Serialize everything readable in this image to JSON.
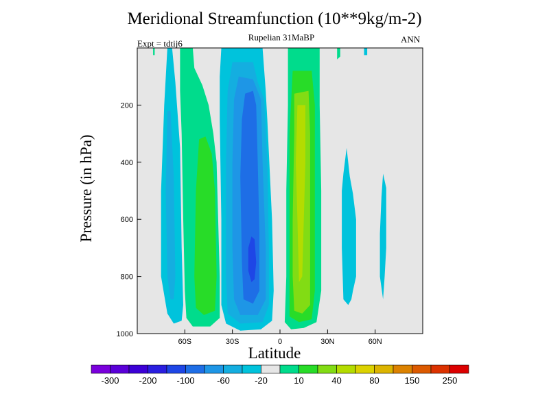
{
  "chart_data": {
    "type": "filled-contour",
    "title": "Meridional Streamfunction (10**9kg/m-2)",
    "subtitle": "Rupelian  31MaBP",
    "left_label": "Expt = tdtij6",
    "right_label": "ANN",
    "xlabel": "Latitude",
    "ylabel": "Pressure (in hPa)",
    "xlim": [
      -90,
      90
    ],
    "ylim": [
      1000,
      0
    ],
    "x_ticks": [
      {
        "value": -60,
        "label": "60S"
      },
      {
        "value": -30,
        "label": "30S"
      },
      {
        "value": 0,
        "label": "0"
      },
      {
        "value": 30,
        "label": "30N"
      },
      {
        "value": 60,
        "label": "60N"
      }
    ],
    "y_ticks": [
      {
        "value": 200,
        "label": "200"
      },
      {
        "value": 400,
        "label": "400"
      },
      {
        "value": 600,
        "label": "600"
      },
      {
        "value": 800,
        "label": "800"
      },
      {
        "value": 1000,
        "label": "1000"
      }
    ],
    "colorbar": {
      "colors": [
        "#7a00dc",
        "#5a00d8",
        "#3c00d6",
        "#2a1ee0",
        "#1e46e6",
        "#1e6ee6",
        "#1e96e6",
        "#14aee0",
        "#00c3dc",
        "#e6e6e6",
        "#00dc8c",
        "#28dc28",
        "#82dc14",
        "#b4dc00",
        "#dcd200",
        "#dcb400",
        "#dc8200",
        "#dc5a00",
        "#dc3200",
        "#dc0000"
      ],
      "labels": [
        {
          "after_index": 0,
          "text": "-300"
        },
        {
          "after_index": 2,
          "text": "-200"
        },
        {
          "after_index": 4,
          "text": "-100"
        },
        {
          "after_index": 6,
          "text": "-60"
        },
        {
          "after_index": 8,
          "text": "-20"
        },
        {
          "after_index": 10,
          "text": "10"
        },
        {
          "after_index": 12,
          "text": "40"
        },
        {
          "after_index": 14,
          "text": "80"
        },
        {
          "after_index": 16,
          "text": "150"
        },
        {
          "after_index": 18,
          "text": "250"
        }
      ]
    },
    "background_color": "#e6e6e6",
    "regions": [
      {
        "color": "#00c3dc",
        "pts": [
          [
            -71,
            0
          ],
          [
            -68,
            0
          ],
          [
            -66,
            120
          ],
          [
            -63,
            350
          ],
          [
            -62,
            700
          ],
          [
            -61,
            900
          ],
          [
            -62,
            955
          ],
          [
            -67,
            965
          ],
          [
            -71,
            930
          ],
          [
            -75,
            800
          ],
          [
            -75,
            500
          ],
          [
            -73,
            200
          ]
        ]
      },
      {
        "color": "#14aee0",
        "pts": [
          [
            -71,
            220
          ],
          [
            -69,
            220
          ],
          [
            -67,
            450
          ],
          [
            -66,
            800
          ],
          [
            -67,
            880
          ],
          [
            -69,
            880
          ],
          [
            -71,
            800
          ],
          [
            -72,
            500
          ]
        ]
      },
      {
        "color": "#00dc8c",
        "pts": [
          [
            -63,
            0
          ],
          [
            -55,
            0
          ],
          [
            -54,
            70
          ],
          [
            -49,
            130
          ],
          [
            -45,
            200
          ],
          [
            -42,
            300
          ],
          [
            -40,
            400
          ],
          [
            -38,
            800
          ],
          [
            -38,
            945
          ],
          [
            -44,
            975
          ],
          [
            -55,
            975
          ],
          [
            -59,
            945
          ],
          [
            -60,
            850
          ],
          [
            -61,
            600
          ],
          [
            -62,
            300
          ],
          [
            -63,
            150
          ]
        ]
      },
      {
        "color": "#28dc28",
        "pts": [
          [
            -51,
            320
          ],
          [
            -47,
            310
          ],
          [
            -43,
            370
          ],
          [
            -41,
            500
          ],
          [
            -40,
            800
          ],
          [
            -41,
            920
          ],
          [
            -48,
            935
          ],
          [
            -53,
            910
          ],
          [
            -54,
            800
          ],
          [
            -53,
            500
          ]
        ]
      },
      {
        "color": "#00c3dc",
        "pts": [
          [
            -37,
            0
          ],
          [
            -11,
            0
          ],
          [
            -9,
            150
          ],
          [
            -8,
            250
          ],
          [
            -5,
            600
          ],
          [
            -4,
            850
          ],
          [
            -5,
            955
          ],
          [
            -12,
            985
          ],
          [
            -25,
            990
          ],
          [
            -34,
            965
          ],
          [
            -37,
            900
          ],
          [
            -37,
            600
          ],
          [
            -38,
            250
          ],
          [
            -38,
            100
          ]
        ]
      },
      {
        "color": "#14aee0",
        "pts": [
          [
            -30,
            50
          ],
          [
            -17,
            50
          ],
          [
            -14,
            120
          ],
          [
            -10,
            180
          ],
          [
            -8,
            400
          ],
          [
            -7,
            700
          ],
          [
            -7,
            900
          ],
          [
            -11,
            960
          ],
          [
            -25,
            965
          ],
          [
            -33,
            930
          ],
          [
            -34,
            800
          ],
          [
            -34,
            400
          ],
          [
            -33,
            150
          ]
        ]
      },
      {
        "color": "#1e96e6",
        "pts": [
          [
            -26,
            100
          ],
          [
            -17,
            110
          ],
          [
            -12,
            180
          ],
          [
            -11,
            400
          ],
          [
            -9,
            700
          ],
          [
            -9,
            880
          ],
          [
            -14,
            935
          ],
          [
            -25,
            935
          ],
          [
            -29,
            880
          ],
          [
            -30,
            700
          ],
          [
            -30,
            400
          ],
          [
            -29,
            180
          ]
        ]
      },
      {
        "color": "#1e6ee6",
        "pts": [
          [
            -22,
            160
          ],
          [
            -17,
            150
          ],
          [
            -15,
            200
          ],
          [
            -14,
            400
          ],
          [
            -13,
            650
          ],
          [
            -13,
            850
          ],
          [
            -17,
            895
          ],
          [
            -23,
            880
          ],
          [
            -24,
            750
          ],
          [
            -25,
            450
          ],
          [
            -24,
            250
          ]
        ]
      },
      {
        "color": "#1e46e6",
        "pts": [
          [
            -18,
            660
          ],
          [
            -16,
            670
          ],
          [
            -15,
            750
          ],
          [
            -16,
            810
          ],
          [
            -18,
            820
          ],
          [
            -20,
            780
          ],
          [
            -20,
            700
          ]
        ]
      },
      {
        "color": "#00dc8c",
        "pts": [
          [
            5,
            0
          ],
          [
            25,
            0
          ],
          [
            25,
            200
          ],
          [
            26,
            500
          ],
          [
            26,
            850
          ],
          [
            23,
            960
          ],
          [
            15,
            980
          ],
          [
            7,
            985
          ],
          [
            3,
            960
          ],
          [
            4,
            800
          ],
          [
            4,
            500
          ],
          [
            5,
            200
          ]
        ]
      },
      {
        "color": "#28dc28",
        "pts": [
          [
            8,
            80
          ],
          [
            20,
            80
          ],
          [
            22,
            200
          ],
          [
            22,
            500
          ],
          [
            22,
            850
          ],
          [
            20,
            950
          ],
          [
            12,
            960
          ],
          [
            6,
            940
          ],
          [
            6,
            700
          ],
          [
            6,
            300
          ]
        ]
      },
      {
        "color": "#82dc14",
        "pts": [
          [
            9,
            160
          ],
          [
            18,
            150
          ],
          [
            19,
            300
          ],
          [
            19,
            600
          ],
          [
            19,
            900
          ],
          [
            14,
            930
          ],
          [
            9,
            920
          ],
          [
            8,
            800
          ],
          [
            8,
            600
          ],
          [
            9,
            300
          ]
        ]
      },
      {
        "color": "#b4dc00",
        "pts": [
          [
            11,
            200
          ],
          [
            16,
            200
          ],
          [
            16,
            400
          ],
          [
            15,
            600
          ],
          [
            14,
            800
          ],
          [
            12,
            820
          ],
          [
            11,
            600
          ],
          [
            10,
            400
          ]
        ]
      },
      {
        "color": "#00dc8c",
        "pts": [
          [
            36,
            0
          ],
          [
            38,
            0
          ],
          [
            38,
            30
          ],
          [
            36,
            40
          ]
        ]
      },
      {
        "color": "#00dc8c",
        "pts": [
          [
            -80,
            0
          ],
          [
            -79,
            0
          ],
          [
            -79,
            25
          ],
          [
            -80,
            25
          ]
        ]
      },
      {
        "color": "#00c3dc",
        "pts": [
          [
            53,
            0
          ],
          [
            55,
            0
          ],
          [
            55,
            25
          ],
          [
            53,
            25
          ]
        ]
      },
      {
        "color": "#00c3dc",
        "pts": [
          [
            40,
            440
          ],
          [
            42,
            350
          ],
          [
            44,
            450
          ],
          [
            46,
            510
          ],
          [
            48,
            600
          ],
          [
            48,
            800
          ],
          [
            46,
            850
          ],
          [
            45,
            880
          ],
          [
            43,
            900
          ],
          [
            40,
            880
          ],
          [
            39,
            700
          ],
          [
            39,
            500
          ]
        ]
      },
      {
        "color": "#00c3dc",
        "pts": [
          [
            64,
            520
          ],
          [
            65,
            440
          ],
          [
            67,
            490
          ],
          [
            67,
            700
          ],
          [
            66,
            800
          ],
          [
            65,
            880
          ],
          [
            63,
            800
          ],
          [
            63,
            650
          ]
        ]
      }
    ]
  }
}
